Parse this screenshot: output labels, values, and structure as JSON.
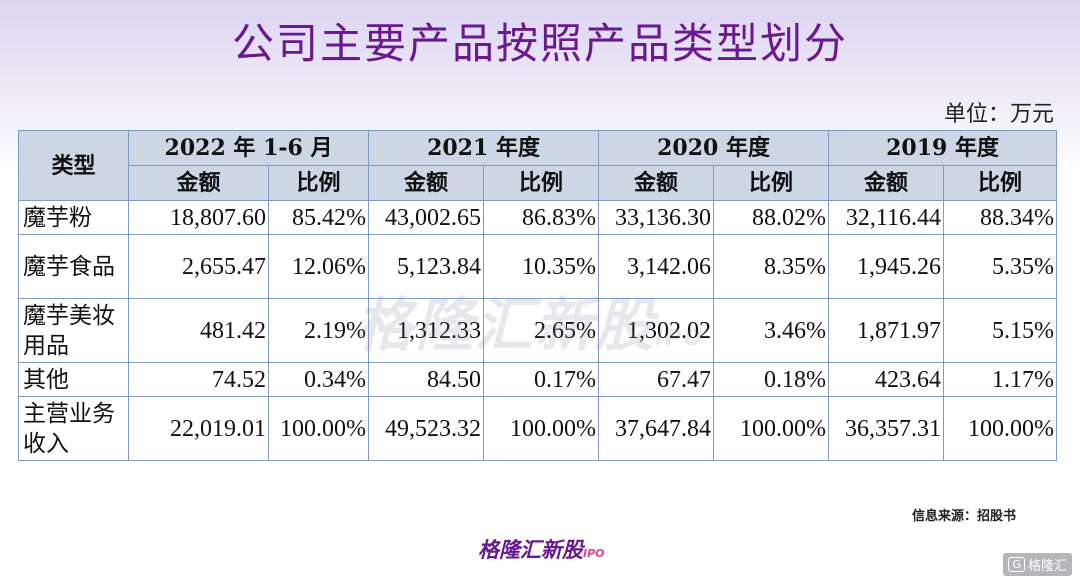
{
  "title": "公司主要产品按照产品类型划分",
  "unit": "单位：万元",
  "table": {
    "category_header": "类型",
    "years": [
      "2022 年 1-6 月",
      "2021 年度",
      "2020 年度",
      "2019 年度"
    ],
    "sub_headers": [
      "金额",
      "比例"
    ],
    "rows": [
      {
        "category": "魔芋粉",
        "cells": [
          "18,807.60",
          "85.42%",
          "43,002.65",
          "86.83%",
          "33,136.30",
          "88.02%",
          "32,116.44",
          "88.34%"
        ]
      },
      {
        "category": "魔芋食品",
        "cells": [
          "2,655.47",
          "12.06%",
          "5,123.84",
          "10.35%",
          "3,142.06",
          "8.35%",
          "1,945.26",
          "5.35%"
        ]
      },
      {
        "category": "魔芋美妆用品",
        "cells": [
          "481.42",
          "2.19%",
          "1,312.33",
          "2.65%",
          "1,302.02",
          "3.46%",
          "1,871.97",
          "5.15%"
        ]
      },
      {
        "category": "其他",
        "cells": [
          "74.52",
          "0.34%",
          "84.50",
          "0.17%",
          "67.47",
          "0.18%",
          "423.64",
          "1.17%"
        ]
      },
      {
        "category": "主营业务收入",
        "cells": [
          "22,019.01",
          "100.00%",
          "49,523.32",
          "100.00%",
          "37,647.84",
          "100.00%",
          "36,357.31",
          "100.00%"
        ]
      }
    ]
  },
  "watermark": {
    "text": "格隆汇新股",
    "suffix": "IPO"
  },
  "source": "信息来源：招股书",
  "footer": {
    "logo_text": "格隆汇新股",
    "logo_suffix": "IPO"
  },
  "corner_badge": {
    "icon": "G",
    "text": "格隆汇"
  }
}
